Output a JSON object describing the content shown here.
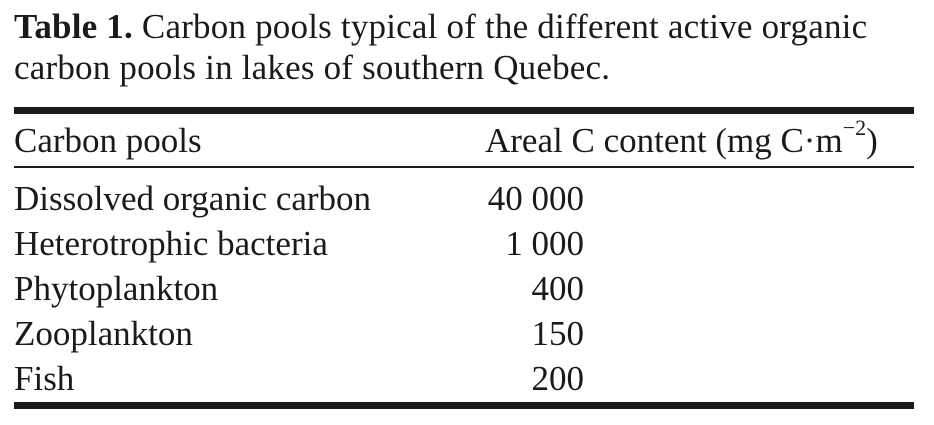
{
  "caption": {
    "label": "Table 1.",
    "text": " Carbon pools typical of the different active organic carbon pools in lakes of southern Quebec."
  },
  "table": {
    "headers": {
      "col1": "Carbon pools",
      "col2_main": "Areal C content (mg C·m",
      "col2_sup": "−2",
      "col2_end": ")"
    },
    "rows": [
      {
        "pool": "Dissolved organic carbon",
        "value": "40 000"
      },
      {
        "pool": "Heterotrophic bacteria",
        "value": "1 000"
      },
      {
        "pool": "Phytoplankton",
        "value": "400"
      },
      {
        "pool": "Zooplankton",
        "value": "150"
      },
      {
        "pool": "Fish",
        "value": "200"
      }
    ]
  }
}
